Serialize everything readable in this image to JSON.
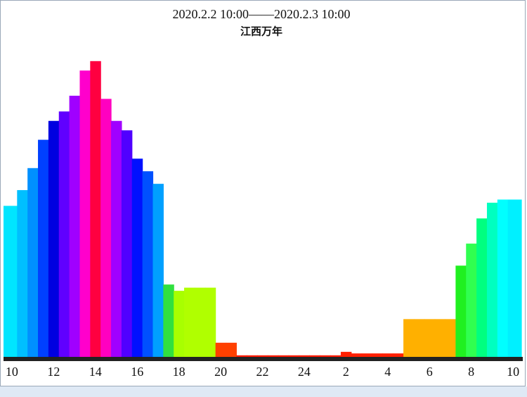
{
  "chart_data": {
    "type": "bar",
    "title": "2020.2.2 10:00——2020.2.3 10:00",
    "subtitle": "江西万年",
    "x": [
      0,
      0.5,
      1,
      1.5,
      2,
      2.5,
      3,
      3.5,
      4,
      4.5,
      5,
      5.5,
      6,
      6.5,
      7,
      7.5,
      8,
      8.5,
      9,
      9.5,
      10,
      10.5,
      11,
      11.5,
      12,
      12.5,
      13,
      13.5,
      14,
      14.5,
      15,
      15.5,
      16,
      16.5,
      17,
      17.5,
      18,
      18.5,
      19,
      19.5,
      20,
      20.5,
      21,
      21.5,
      22,
      22.5,
      23,
      23.5,
      24
    ],
    "values": [
      48,
      53,
      60,
      69,
      75,
      78,
      83,
      91,
      94,
      82,
      75,
      72,
      63,
      59,
      55,
      23,
      21,
      22,
      22,
      22,
      4.5,
      4.5,
      0.5,
      0.5,
      0.5,
      0.5,
      0.5,
      0.5,
      0.5,
      0.5,
      0.5,
      0.5,
      1.6,
      1.1,
      1.1,
      1.1,
      1.1,
      1.1,
      12,
      12,
      12,
      12,
      12,
      29,
      36,
      44,
      49,
      50,
      50
    ],
    "colors": [
      "#00e5ff",
      "#00bfff",
      "#0090ff",
      "#0040ff",
      "#0000e0",
      "#6000ff",
      "#a000ff",
      "#ff00cc",
      "#ff0040",
      "#ff00c0",
      "#a000ff",
      "#5000ff",
      "#0010ff",
      "#0050ff",
      "#00a0ff",
      "#30e040",
      "#a8ff00",
      "#b0ff00",
      "#b0ff00",
      "#b0ff00",
      "#ff4000",
      "#ff4000",
      "#ff1a00",
      "#ff1a00",
      "#ff1a00",
      "#ff1a00",
      "#ff1a00",
      "#ff1a00",
      "#ff1a00",
      "#ff1a00",
      "#ff1a00",
      "#ff1a00",
      "#ff2000",
      "#ff2000",
      "#ff2000",
      "#ff2000",
      "#ff2000",
      "#ff2000",
      "#ffb000",
      "#ffb000",
      "#ffb000",
      "#ffb000",
      "#ffb000",
      "#20f020",
      "#30ff50",
      "#00ff80",
      "#00ffc0",
      "#00ffff",
      "#00f0ff"
    ],
    "xlim": [
      -0.4,
      24.4
    ],
    "ylim": [
      0,
      100
    ],
    "xticks": [
      {
        "value": 0,
        "label": "10"
      },
      {
        "value": 2,
        "label": "12"
      },
      {
        "value": 4,
        "label": "14"
      },
      {
        "value": 6,
        "label": "16"
      },
      {
        "value": 8,
        "label": "18"
      },
      {
        "value": 10,
        "label": "20"
      },
      {
        "value": 12,
        "label": "22"
      },
      {
        "value": 14,
        "label": "24"
      },
      {
        "value": 16,
        "label": "2"
      },
      {
        "value": 18,
        "label": "4"
      },
      {
        "value": 20,
        "label": "6"
      },
      {
        "value": 22,
        "label": "8"
      },
      {
        "value": 24,
        "label": "10"
      }
    ]
  }
}
